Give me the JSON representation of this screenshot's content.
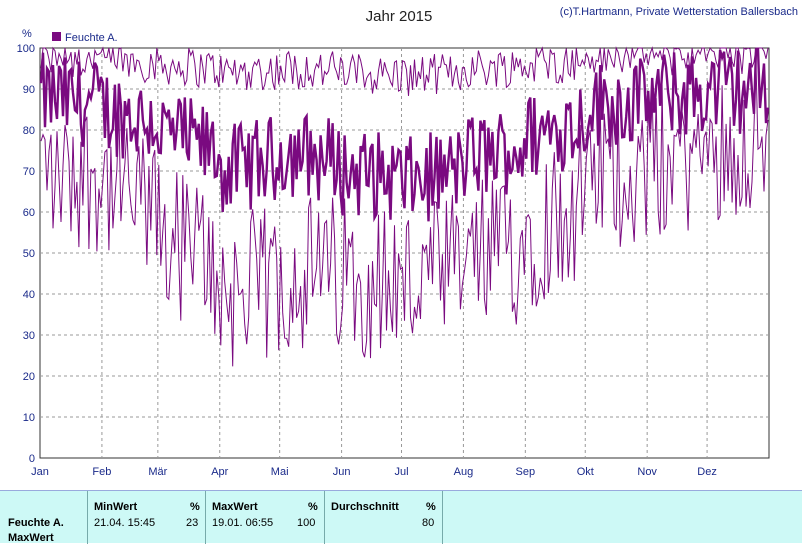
{
  "chart_data": {
    "type": "line",
    "title": "Jahr 2015",
    "credit": "(c)T.Hartmann, Private Wetterstation Ballersbach",
    "ylabel": "%",
    "ylim": [
      0,
      100
    ],
    "yticks": [
      "0",
      "10",
      "20",
      "30",
      "40",
      "50",
      "60",
      "70",
      "80",
      "90",
      "100"
    ],
    "x_months": [
      "Jan",
      "Feb",
      "Mär",
      "Apr",
      "Mai",
      "Jun",
      "Jul",
      "Aug",
      "Sep",
      "Okt",
      "Nov",
      "Dez"
    ],
    "grid": true,
    "legend": "top-left",
    "series": [
      {
        "name": "Feuchte A.",
        "color": "#7a0a80",
        "note_style": "thick line = daily mean, thin lines = daily max/min",
        "month_mean": [
          88,
          85,
          80,
          70,
          75,
          70,
          67,
          73,
          78,
          86,
          88,
          90
        ],
        "month_max": [
          97,
          97,
          96,
          94,
          95,
          94,
          93,
          95,
          96,
          97,
          98,
          98
        ],
        "month_min": [
          72,
          68,
          55,
          40,
          45,
          45,
          42,
          48,
          55,
          70,
          72,
          78
        ]
      }
    ]
  },
  "stats": {
    "row_label_1": "Feuchte A.",
    "row_label_2": "MaxWert",
    "min_header": "MinWert",
    "min_unit": "%",
    "min_time": "21.04. 15:45",
    "min_value": "23",
    "max_header": "MaxWert",
    "max_unit": "%",
    "max_time": "19.01. 06:55",
    "max_value": "100",
    "avg_header": "Durchschnitt",
    "avg_unit": "%",
    "avg_value": "80"
  }
}
